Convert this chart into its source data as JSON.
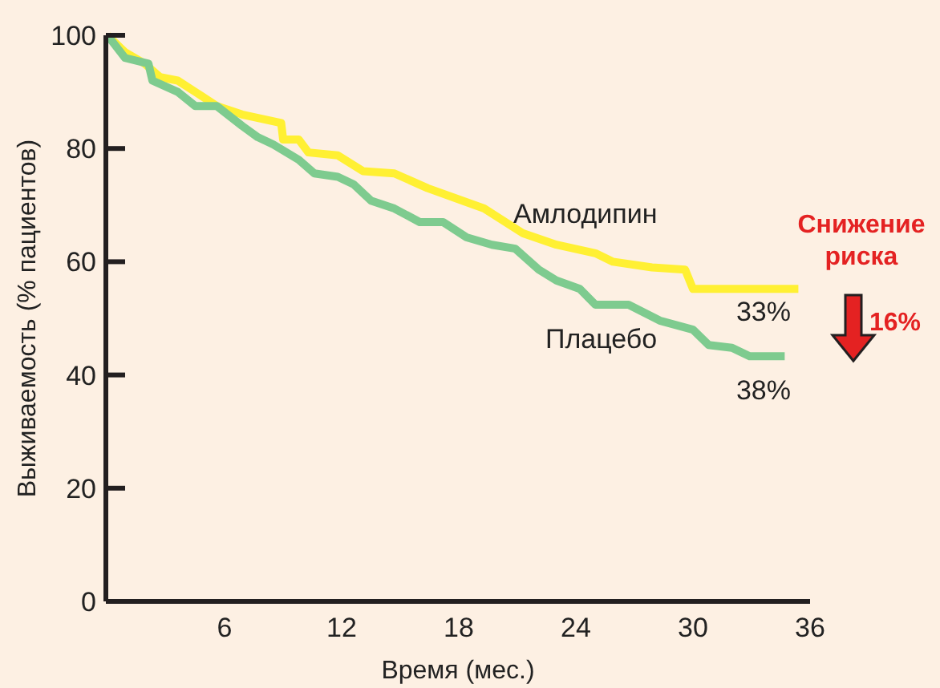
{
  "chart_data": {
    "type": "line",
    "xlabel": "Время (мес.)",
    "ylabel": "Выживаемость (% пациентов)",
    "xlim": [
      0,
      36
    ],
    "ylim": [
      0,
      100
    ],
    "xticks": [
      6,
      12,
      18,
      24,
      30,
      36
    ],
    "yticks": [
      0,
      20,
      40,
      60,
      80,
      100
    ],
    "grid": false,
    "marker": "none",
    "line_style": "solid",
    "series": [
      {
        "name": "Амлодипин",
        "color": "#fff033",
        "x": [
          0,
          0.9,
          1.9,
          2.7,
          3.6,
          4.5,
          5.6,
          6.9,
          8.9,
          9,
          9.8,
          10.3,
          11.8,
          13.1,
          14.7,
          16.4,
          19.3,
          21.3,
          23,
          25,
          25.9,
          27.9,
          29.6,
          30,
          35.4
        ],
        "values": [
          100,
          97,
          95,
          92.6,
          92,
          90,
          87.5,
          86,
          84.5,
          81.6,
          81.6,
          79.3,
          78.8,
          76,
          75.6,
          73,
          69.4,
          65,
          63,
          61.5,
          60,
          59,
          58.6,
          55.2,
          55.2
        ]
      },
      {
        "name": "Плацебо",
        "color": "#7ecb8f",
        "x": [
          0,
          0.9,
          2.1,
          2.3,
          3.6,
          4.5,
          5.6,
          6.9,
          7.7,
          8.5,
          9.8,
          10.6,
          11.8,
          12.6,
          13.5,
          14.7,
          16,
          17.2,
          18.4,
          19.7,
          20.9,
          22.1,
          23,
          24.2,
          25,
          26.7,
          28.3,
          30,
          30.8,
          32,
          32.9,
          34.7
        ],
        "values": [
          100,
          96,
          95,
          92,
          90,
          87.5,
          87.5,
          84,
          82,
          80.7,
          78,
          75.6,
          75,
          73.7,
          70.8,
          69.4,
          67,
          67,
          64.3,
          63,
          62.3,
          58.6,
          56.7,
          55.2,
          52.4,
          52.4,
          49.6,
          48,
          45.3,
          44.8,
          43.3,
          43.3
        ]
      }
    ],
    "annotations": [
      "33%",
      "38%",
      "Снижение риска",
      "16%"
    ]
  }
}
